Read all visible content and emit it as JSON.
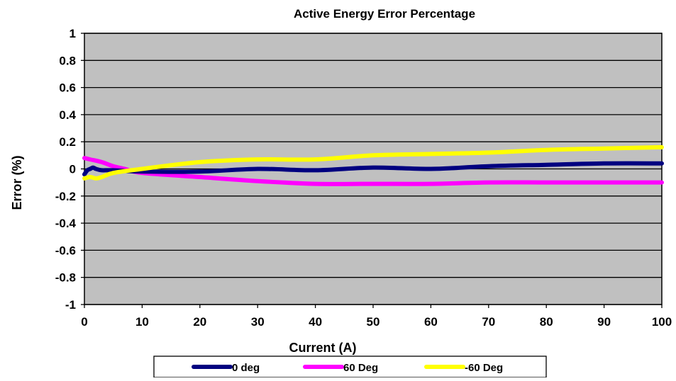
{
  "chart_data": {
    "type": "line",
    "title": "Active Energy Error Percentage",
    "xlabel": "Current (A)",
    "ylabel": "Error (%)",
    "xlim": [
      0,
      100
    ],
    "ylim": [
      -1,
      1
    ],
    "x_ticks": [
      "0",
      "10",
      "20",
      "30",
      "40",
      "50",
      "60",
      "70",
      "80",
      "90",
      "100"
    ],
    "y_ticks": [
      "1",
      "0.8",
      "0.6",
      "0.4",
      "0.2",
      "0",
      "-0.2",
      "-0.4",
      "-0.6",
      "-0.8",
      "-1"
    ],
    "grid": true,
    "legend_position": "bottom",
    "plot_background": "#C0C0C0",
    "series": [
      {
        "name": "0 deg",
        "color": "#000080",
        "points": [
          [
            0,
            -0.04
          ],
          [
            0.5,
            -0.01
          ],
          [
            1,
            0.0
          ],
          [
            1.5,
            0.01
          ],
          [
            2,
            0.0
          ],
          [
            3,
            -0.01
          ],
          [
            5,
            -0.01
          ],
          [
            10,
            -0.02
          ],
          [
            20,
            -0.02
          ],
          [
            30,
            0.0
          ],
          [
            40,
            -0.01
          ],
          [
            50,
            0.01
          ],
          [
            60,
            0.0
          ],
          [
            70,
            0.02
          ],
          [
            80,
            0.03
          ],
          [
            90,
            0.04
          ],
          [
            100,
            0.04
          ]
        ]
      },
      {
        "name": "60 Deg",
        "color": "#FF00FF",
        "points": [
          [
            0,
            0.08
          ],
          [
            1,
            0.07
          ],
          [
            3,
            0.05
          ],
          [
            5,
            0.02
          ],
          [
            7,
            0.0
          ],
          [
            10,
            -0.03
          ],
          [
            20,
            -0.06
          ],
          [
            30,
            -0.09
          ],
          [
            40,
            -0.11
          ],
          [
            50,
            -0.11
          ],
          [
            60,
            -0.11
          ],
          [
            70,
            -0.1
          ],
          [
            80,
            -0.1
          ],
          [
            90,
            -0.1
          ],
          [
            100,
            -0.1
          ]
        ]
      },
      {
        "name": "-60 Deg",
        "color": "#FFFF00",
        "points": [
          [
            0,
            -0.07
          ],
          [
            1,
            -0.06
          ],
          [
            2,
            -0.07
          ],
          [
            3,
            -0.06
          ],
          [
            5,
            -0.03
          ],
          [
            10,
            0.0
          ],
          [
            20,
            0.05
          ],
          [
            30,
            0.07
          ],
          [
            40,
            0.07
          ],
          [
            50,
            0.1
          ],
          [
            60,
            0.11
          ],
          [
            70,
            0.12
          ],
          [
            80,
            0.14
          ],
          [
            90,
            0.15
          ],
          [
            100,
            0.16
          ]
        ]
      }
    ]
  }
}
